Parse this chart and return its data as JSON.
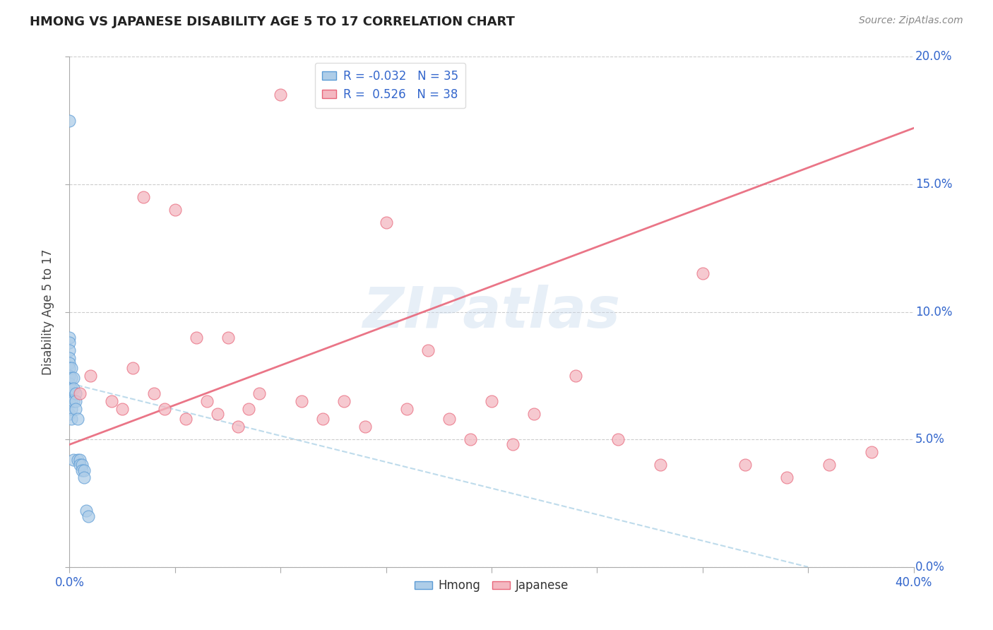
{
  "title": "HMONG VS JAPANESE DISABILITY AGE 5 TO 17 CORRELATION CHART",
  "source": "Source: ZipAtlas.com",
  "ylabel": "Disability Age 5 to 17",
  "xlabel_hmong": "Hmong",
  "xlabel_japanese": "Japanese",
  "xmin": 0.0,
  "xmax": 0.4,
  "ymin": 0.0,
  "ymax": 0.2,
  "xticks": [
    0.0,
    0.05,
    0.1,
    0.15,
    0.2,
    0.25,
    0.3,
    0.35,
    0.4
  ],
  "xtick_labels_show": [
    "0.0%",
    "",
    "",
    "",
    "",
    "",
    "",
    "",
    "40.0%"
  ],
  "ytick_labels_right": [
    "0.0%",
    "5.0%",
    "10.0%",
    "15.0%",
    "20.0%"
  ],
  "yticks": [
    0.0,
    0.05,
    0.1,
    0.15,
    0.2
  ],
  "hmong_R": -0.032,
  "hmong_N": 35,
  "japanese_R": 0.526,
  "japanese_N": 38,
  "hmong_color": "#aecde8",
  "hmong_edge_color": "#5b9bd5",
  "japanese_color": "#f4b8c1",
  "japanese_edge_color": "#e8667a",
  "japanese_line_color": "#e8667a",
  "hmong_line_color": "#93c4df",
  "watermark_text": "ZIPatlas",
  "hmong_x": [
    0.0,
    0.0,
    0.0,
    0.0,
    0.0,
    0.0,
    0.0,
    0.0,
    0.0,
    0.0,
    0.0,
    0.0,
    0.001,
    0.001,
    0.001,
    0.001,
    0.001,
    0.001,
    0.002,
    0.002,
    0.002,
    0.002,
    0.003,
    0.003,
    0.003,
    0.004,
    0.004,
    0.005,
    0.005,
    0.006,
    0.006,
    0.007,
    0.007,
    0.008,
    0.009
  ],
  "hmong_y": [
    0.175,
    0.09,
    0.088,
    0.085,
    0.082,
    0.08,
    0.078,
    0.075,
    0.072,
    0.068,
    0.065,
    0.06,
    0.078,
    0.074,
    0.07,
    0.065,
    0.062,
    0.058,
    0.074,
    0.07,
    0.065,
    0.042,
    0.068,
    0.065,
    0.062,
    0.058,
    0.042,
    0.042,
    0.04,
    0.04,
    0.038,
    0.038,
    0.035,
    0.022,
    0.02
  ],
  "japanese_x": [
    0.005,
    0.01,
    0.02,
    0.025,
    0.03,
    0.035,
    0.04,
    0.045,
    0.05,
    0.055,
    0.06,
    0.065,
    0.07,
    0.075,
    0.08,
    0.085,
    0.09,
    0.1,
    0.11,
    0.12,
    0.13,
    0.14,
    0.15,
    0.16,
    0.17,
    0.18,
    0.19,
    0.2,
    0.21,
    0.22,
    0.24,
    0.26,
    0.28,
    0.3,
    0.32,
    0.34,
    0.36,
    0.38
  ],
  "japanese_y": [
    0.068,
    0.075,
    0.065,
    0.062,
    0.078,
    0.145,
    0.068,
    0.062,
    0.14,
    0.058,
    0.09,
    0.065,
    0.06,
    0.09,
    0.055,
    0.062,
    0.068,
    0.185,
    0.065,
    0.058,
    0.065,
    0.055,
    0.135,
    0.062,
    0.085,
    0.058,
    0.05,
    0.065,
    0.048,
    0.06,
    0.075,
    0.05,
    0.04,
    0.115,
    0.04,
    0.035,
    0.04,
    0.045
  ],
  "japanese_line_x0": 0.0,
  "japanese_line_y0": 0.048,
  "japanese_line_x1": 0.4,
  "japanese_line_y1": 0.172,
  "hmong_line_x0": 0.0,
  "hmong_line_y0": 0.072,
  "hmong_line_x1": 0.35,
  "hmong_line_y1": 0.0
}
